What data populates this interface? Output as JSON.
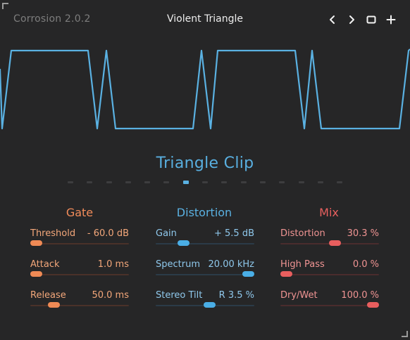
{
  "header": {
    "app_version": "Corrosion 2.0.2",
    "preset_name": "Violent Triangle",
    "buttons": [
      {
        "name": "prev-preset-button",
        "icon": "chevron-left-icon"
      },
      {
        "name": "next-preset-button",
        "icon": "chevron-right-icon"
      },
      {
        "name": "window-button",
        "icon": "square-icon"
      },
      {
        "name": "add-preset-button",
        "icon": "plus-icon"
      }
    ]
  },
  "scope": {
    "waveform_color": "#5ab1e2"
  },
  "mode": {
    "title": "Triangle Clip",
    "page_count": 15,
    "active_index": 6
  },
  "sections": {
    "gate": {
      "title": "Gate",
      "color": "#f28c5a",
      "params": [
        {
          "label": "Threshold",
          "value": "- 60.0 dB",
          "level": 0.0
        },
        {
          "label": "Attack",
          "value": "1.0 ms",
          "level": 0.0
        },
        {
          "label": "Release",
          "value": "50.0 ms",
          "level": 0.2
        }
      ]
    },
    "distortion": {
      "title": "Distortion",
      "color": "#5ab1e2",
      "params": [
        {
          "label": "Gain",
          "value": "+ 5.5 dB",
          "level": 0.25
        },
        {
          "label": "Spectrum",
          "value": "20.00 kHz",
          "level": 1.0
        },
        {
          "label": "Stereo Tilt",
          "value": "R 3.5 %",
          "level": 0.55
        }
      ]
    },
    "mix": {
      "title": "Mix",
      "color": "#e8605f",
      "params": [
        {
          "label": "Distortion",
          "value": "30.3 %",
          "level": 0.56
        },
        {
          "label": "High Pass",
          "value": "0.0 %",
          "level": 0.0
        },
        {
          "label": "Dry/Wet",
          "value": "100.0 %",
          "level": 1.0
        }
      ]
    }
  }
}
